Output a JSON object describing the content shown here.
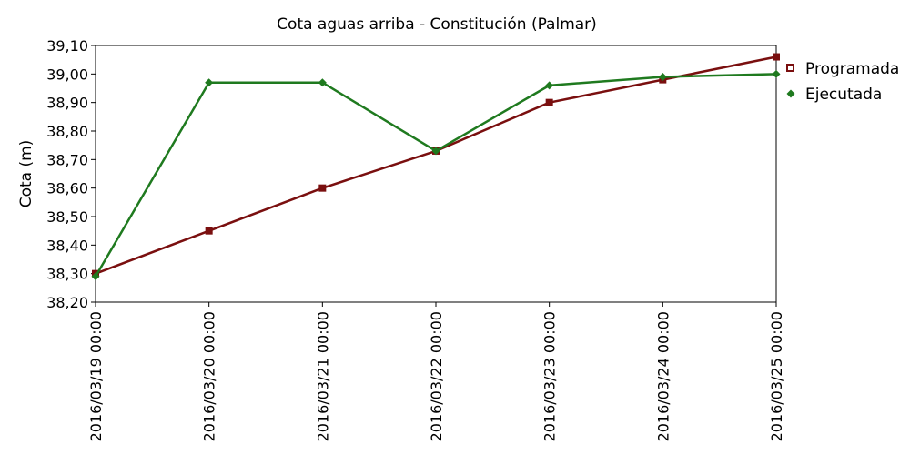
{
  "chart_data": {
    "type": "line",
    "title": "Cota aguas arriba - Constitución (Palmar)",
    "xlabel": "",
    "ylabel": "Cota (m)",
    "ylim": [
      38.2,
      39.1
    ],
    "yticks": [
      "38,20",
      "38,30",
      "38,40",
      "38,50",
      "38,60",
      "38,70",
      "38,80",
      "38,90",
      "39,00",
      "39,10"
    ],
    "categories": [
      "2016/03/19 00:00",
      "2016/03/20 00:00",
      "2016/03/21 00:00",
      "2016/03/22 00:00",
      "2016/03/23 00:00",
      "2016/03/24 00:00",
      "2016/03/25 00:00"
    ],
    "grid": false,
    "legend_position": "right",
    "series": [
      {
        "name": "Programada",
        "color": "#7a0f0f",
        "marker": "square",
        "values": [
          38.3,
          38.45,
          38.6,
          38.73,
          38.9,
          38.98,
          39.06
        ]
      },
      {
        "name": "Ejecutada",
        "color": "#1f7a1f",
        "marker": "diamond",
        "values": [
          38.29,
          38.97,
          38.97,
          38.73,
          38.96,
          38.99,
          39.0
        ]
      }
    ]
  }
}
